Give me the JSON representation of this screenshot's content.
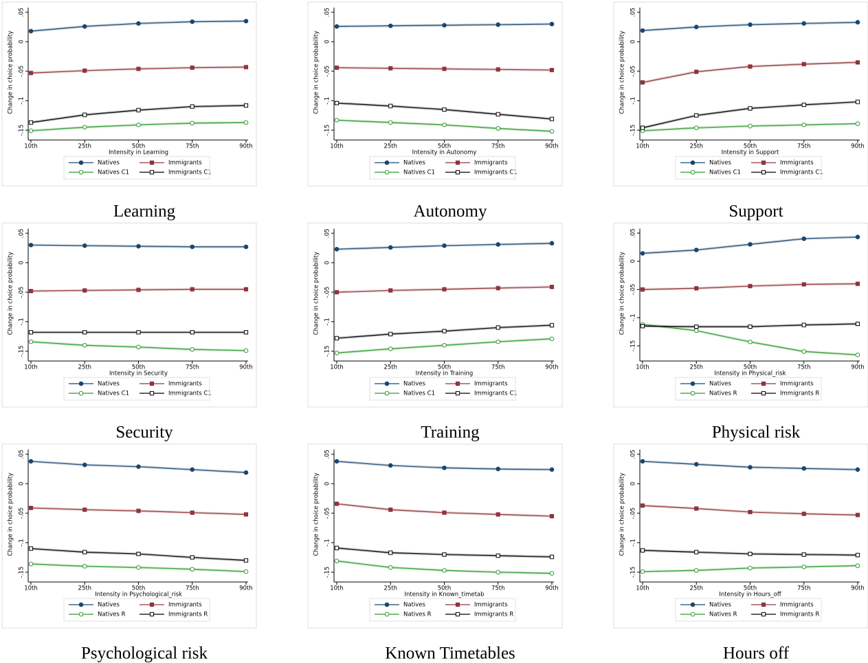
{
  "chart_data": [
    {
      "type": "line",
      "caption": "Learning",
      "xlabel": "Intensity in Learning",
      "ylabel": "Change in choice probability",
      "categories": [
        "10th",
        "25th",
        "50th",
        "75th",
        "90th"
      ],
      "ylim": [
        -0.162,
        0.058
      ],
      "yticks": [
        {
          "value": 0.05,
          "label": ".05"
        },
        0,
        {
          "value": -0.05,
          "label": "-.05"
        },
        {
          "value": -0.1,
          "label": "-.1"
        },
        {
          "value": -0.15,
          "label": "-.15"
        }
      ],
      "series": [
        {
          "name": "Natives",
          "color": "#1a476f",
          "marker": "circle",
          "hollow": false,
          "values": [
            0.018,
            0.026,
            0.031,
            0.034,
            0.035
          ]
        },
        {
          "name": "Immigrants",
          "color": "#90353b",
          "marker": "square",
          "hollow": false,
          "values": [
            -0.053,
            -0.049,
            -0.046,
            -0.044,
            -0.043
          ]
        },
        {
          "name": "Natives C1",
          "color": "#2e9a2e",
          "marker": "circle",
          "hollow": true,
          "values": [
            -0.151,
            -0.145,
            -0.141,
            -0.138,
            -0.137
          ]
        },
        {
          "name": "Immigrants C1",
          "color": "#000000",
          "marker": "square",
          "hollow": true,
          "values": [
            -0.137,
            -0.124,
            -0.116,
            -0.11,
            -0.108
          ]
        }
      ]
    },
    {
      "type": "line",
      "caption": "Autonomy",
      "xlabel": "Intensity in Autonomy",
      "ylabel": "Change in choice probability",
      "categories": [
        "10th",
        "25th",
        "50th",
        "75th",
        "90th"
      ],
      "ylim": [
        -0.162,
        0.058
      ],
      "yticks": [
        {
          "value": 0.05,
          "label": ".05"
        },
        0,
        {
          "value": -0.05,
          "label": "-.05"
        },
        {
          "value": -0.1,
          "label": "-.1"
        },
        {
          "value": -0.15,
          "label": "-.15"
        }
      ],
      "series": [
        {
          "name": "Natives",
          "color": "#1a476f",
          "marker": "circle",
          "hollow": false,
          "values": [
            0.026,
            0.027,
            0.028,
            0.029,
            0.03
          ]
        },
        {
          "name": "Immigrants",
          "color": "#90353b",
          "marker": "square",
          "hollow": false,
          "values": [
            -0.044,
            -0.045,
            -0.046,
            -0.047,
            -0.048
          ]
        },
        {
          "name": "Natives C1",
          "color": "#2e9a2e",
          "marker": "circle",
          "hollow": true,
          "values": [
            -0.133,
            -0.137,
            -0.141,
            -0.147,
            -0.152
          ]
        },
        {
          "name": "Immigrants C1",
          "color": "#000000",
          "marker": "square",
          "hollow": true,
          "values": [
            -0.104,
            -0.109,
            -0.115,
            -0.123,
            -0.131
          ]
        }
      ]
    },
    {
      "type": "line",
      "caption": "Support",
      "xlabel": "Intensity in Support",
      "ylabel": "Change in choice probability",
      "categories": [
        "10th",
        "25th",
        "50th",
        "75th",
        "90th"
      ],
      "ylim": [
        -0.162,
        0.058
      ],
      "yticks": [
        {
          "value": 0.05,
          "label": ".05"
        },
        0,
        {
          "value": -0.05,
          "label": "-.05"
        },
        {
          "value": -0.1,
          "label": "-.1"
        },
        {
          "value": -0.15,
          "label": "-.15"
        }
      ],
      "series": [
        {
          "name": "Natives",
          "color": "#1a476f",
          "marker": "circle",
          "hollow": false,
          "values": [
            0.019,
            0.025,
            0.029,
            0.031,
            0.033
          ]
        },
        {
          "name": "Immigrants",
          "color": "#90353b",
          "marker": "square",
          "hollow": false,
          "values": [
            -0.069,
            -0.051,
            -0.042,
            -0.038,
            -0.035
          ]
        },
        {
          "name": "Natives C1",
          "color": "#2e9a2e",
          "marker": "circle",
          "hollow": true,
          "values": [
            -0.151,
            -0.146,
            -0.143,
            -0.141,
            -0.139
          ]
        },
        {
          "name": "Immigrants C1",
          "color": "#000000",
          "marker": "square",
          "hollow": true,
          "values": [
            -0.146,
            -0.125,
            -0.113,
            -0.107,
            -0.102
          ]
        }
      ]
    },
    {
      "type": "line",
      "caption": "Security",
      "xlabel": "Intensity in Security",
      "ylabel": "Change in choice probability",
      "categories": [
        "10th",
        "25th",
        "50th",
        "75th",
        "90th"
      ],
      "ylim": [
        -0.162,
        0.058
      ],
      "yticks": [
        {
          "value": 0.05,
          "label": ".05"
        },
        0,
        {
          "value": -0.05,
          "label": "-.05"
        },
        {
          "value": -0.1,
          "label": "-.1"
        },
        {
          "value": -0.15,
          "label": "-.15"
        }
      ],
      "series": [
        {
          "name": "Natives",
          "color": "#1a476f",
          "marker": "circle",
          "hollow": false,
          "values": [
            0.03,
            0.029,
            0.028,
            0.027,
            0.027
          ]
        },
        {
          "name": "Immigrants",
          "color": "#90353b",
          "marker": "square",
          "hollow": false,
          "values": [
            -0.048,
            -0.047,
            -0.046,
            -0.045,
            -0.045
          ]
        },
        {
          "name": "Natives C1",
          "color": "#2e9a2e",
          "marker": "circle",
          "hollow": true,
          "values": [
            -0.134,
            -0.14,
            -0.143,
            -0.147,
            -0.149
          ]
        },
        {
          "name": "Immigrants C1",
          "color": "#000000",
          "marker": "square",
          "hollow": true,
          "values": [
            -0.118,
            -0.118,
            -0.118,
            -0.118,
            -0.118
          ]
        }
      ]
    },
    {
      "type": "line",
      "caption": "Training",
      "xlabel": "Intensity in Training",
      "ylabel": "Change in choice probability",
      "categories": [
        "10th",
        "25th",
        "50th",
        "75th",
        "90th"
      ],
      "ylim": [
        -0.162,
        0.058
      ],
      "yticks": [
        {
          "value": 0.05,
          "label": ".05"
        },
        0,
        {
          "value": -0.05,
          "label": "-.05"
        },
        {
          "value": -0.1,
          "label": "-.1"
        },
        {
          "value": -0.15,
          "label": "-.15"
        }
      ],
      "series": [
        {
          "name": "Natives",
          "color": "#1a476f",
          "marker": "circle",
          "hollow": false,
          "values": [
            0.023,
            0.026,
            0.029,
            0.031,
            0.033
          ]
        },
        {
          "name": "Immigrants",
          "color": "#90353b",
          "marker": "square",
          "hollow": false,
          "values": [
            -0.05,
            -0.047,
            -0.045,
            -0.043,
            -0.041
          ]
        },
        {
          "name": "Natives C1",
          "color": "#2e9a2e",
          "marker": "circle",
          "hollow": true,
          "values": [
            -0.153,
            -0.146,
            -0.14,
            -0.134,
            -0.129
          ]
        },
        {
          "name": "Immigrants C1",
          "color": "#000000",
          "marker": "square",
          "hollow": true,
          "values": [
            -0.128,
            -0.121,
            -0.116,
            -0.11,
            -0.106
          ]
        }
      ]
    },
    {
      "type": "line",
      "caption": "Physical risk",
      "xlabel": "Intensity in Physical_risk",
      "ylabel": "Change in choice probability",
      "categories": [
        "10th",
        "25th",
        "50th",
        "75th",
        "90th"
      ],
      "ylim": [
        -0.172,
        0.058
      ],
      "yticks": [
        {
          "value": 0.05,
          "label": ".05"
        },
        0,
        {
          "value": -0.05,
          "label": "-.05"
        },
        {
          "value": -0.1,
          "label": "-.1"
        },
        {
          "value": -0.15,
          "label": "-.15"
        }
      ],
      "series": [
        {
          "name": "Natives",
          "color": "#1a476f",
          "marker": "circle",
          "hollow": false,
          "values": [
            0.014,
            0.02,
            0.03,
            0.04,
            0.043
          ]
        },
        {
          "name": "Immigrants",
          "color": "#90353b",
          "marker": "square",
          "hollow": false,
          "values": [
            -0.05,
            -0.048,
            -0.044,
            -0.041,
            -0.04
          ]
        },
        {
          "name": "Natives R",
          "color": "#2e9a2e",
          "marker": "circle",
          "hollow": true,
          "values": [
            -0.112,
            -0.123,
            -0.143,
            -0.16,
            -0.166
          ]
        },
        {
          "name": "Immigrants R",
          "color": "#000000",
          "marker": "square",
          "hollow": true,
          "values": [
            -0.115,
            -0.116,
            -0.116,
            -0.113,
            -0.111
          ]
        }
      ]
    },
    {
      "type": "line",
      "caption": "Psychological risk",
      "xlabel": "Intensity in Psychological_risk",
      "ylabel": "Change in choice probability",
      "categories": [
        "10th",
        "25th",
        "50th",
        "75th",
        "90th"
      ],
      "ylim": [
        -0.162,
        0.058
      ],
      "yticks": [
        {
          "value": 0.05,
          "label": ".05"
        },
        0,
        {
          "value": -0.05,
          "label": "-.05"
        },
        {
          "value": -0.1,
          "label": "-.1"
        },
        {
          "value": -0.15,
          "label": "-.15"
        }
      ],
      "series": [
        {
          "name": "Natives",
          "color": "#1a476f",
          "marker": "circle",
          "hollow": false,
          "values": [
            0.038,
            0.032,
            0.029,
            0.024,
            0.019
          ]
        },
        {
          "name": "Immigrants",
          "color": "#90353b",
          "marker": "square",
          "hollow": false,
          "values": [
            -0.041,
            -0.044,
            -0.046,
            -0.049,
            -0.052
          ]
        },
        {
          "name": "Natives R",
          "color": "#2e9a2e",
          "marker": "circle",
          "hollow": true,
          "values": [
            -0.136,
            -0.14,
            -0.142,
            -0.145,
            -0.149
          ]
        },
        {
          "name": "Immigrants R",
          "color": "#000000",
          "marker": "square",
          "hollow": true,
          "values": [
            -0.11,
            -0.116,
            -0.119,
            -0.125,
            -0.13
          ]
        }
      ]
    },
    {
      "type": "line",
      "caption": "Known Timetables",
      "xlabel": "Intensity in Known_timetab",
      "ylabel": "Change in choice probability",
      "categories": [
        "10th",
        "25th",
        "50th",
        "75th",
        "90th"
      ],
      "ylim": [
        -0.162,
        0.058
      ],
      "yticks": [
        {
          "value": 0.05,
          "label": ".05"
        },
        0,
        {
          "value": -0.05,
          "label": "-.05"
        },
        {
          "value": -0.1,
          "label": "-.1"
        },
        {
          "value": -0.15,
          "label": "-.15"
        }
      ],
      "series": [
        {
          "name": "Natives",
          "color": "#1a476f",
          "marker": "circle",
          "hollow": false,
          "values": [
            0.038,
            0.031,
            0.027,
            0.025,
            0.024
          ]
        },
        {
          "name": "Immigrants",
          "color": "#90353b",
          "marker": "square",
          "hollow": false,
          "values": [
            -0.034,
            -0.044,
            -0.049,
            -0.052,
            -0.055
          ]
        },
        {
          "name": "Natives R",
          "color": "#2e9a2e",
          "marker": "circle",
          "hollow": true,
          "values": [
            -0.131,
            -0.142,
            -0.147,
            -0.15,
            -0.152
          ]
        },
        {
          "name": "Immigrants R",
          "color": "#000000",
          "marker": "square",
          "hollow": true,
          "values": [
            -0.109,
            -0.117,
            -0.12,
            -0.122,
            -0.124
          ]
        }
      ]
    },
    {
      "type": "line",
      "caption": "Hours off",
      "xlabel": "Intensity in Hours_off",
      "ylabel": "Change in choice probability",
      "categories": [
        "10th",
        "25th",
        "50th",
        "75th",
        "90th"
      ],
      "ylim": [
        -0.162,
        0.058
      ],
      "yticks": [
        {
          "value": 0.05,
          "label": ".05"
        },
        0,
        {
          "value": -0.05,
          "label": "-.05"
        },
        {
          "value": -0.1,
          "label": "-.1"
        },
        {
          "value": -0.15,
          "label": "-.15"
        }
      ],
      "series": [
        {
          "name": "Natives",
          "color": "#1a476f",
          "marker": "circle",
          "hollow": false,
          "values": [
            0.038,
            0.033,
            0.028,
            0.026,
            0.024
          ]
        },
        {
          "name": "Immigrants",
          "color": "#90353b",
          "marker": "square",
          "hollow": false,
          "values": [
            -0.037,
            -0.042,
            -0.048,
            -0.051,
            -0.053
          ]
        },
        {
          "name": "Natives R",
          "color": "#2e9a2e",
          "marker": "circle",
          "hollow": true,
          "values": [
            -0.149,
            -0.147,
            -0.143,
            -0.141,
            -0.139
          ]
        },
        {
          "name": "Immigrants R",
          "color": "#000000",
          "marker": "square",
          "hollow": true,
          "values": [
            -0.113,
            -0.116,
            -0.119,
            -0.12,
            -0.121
          ]
        }
      ]
    }
  ]
}
